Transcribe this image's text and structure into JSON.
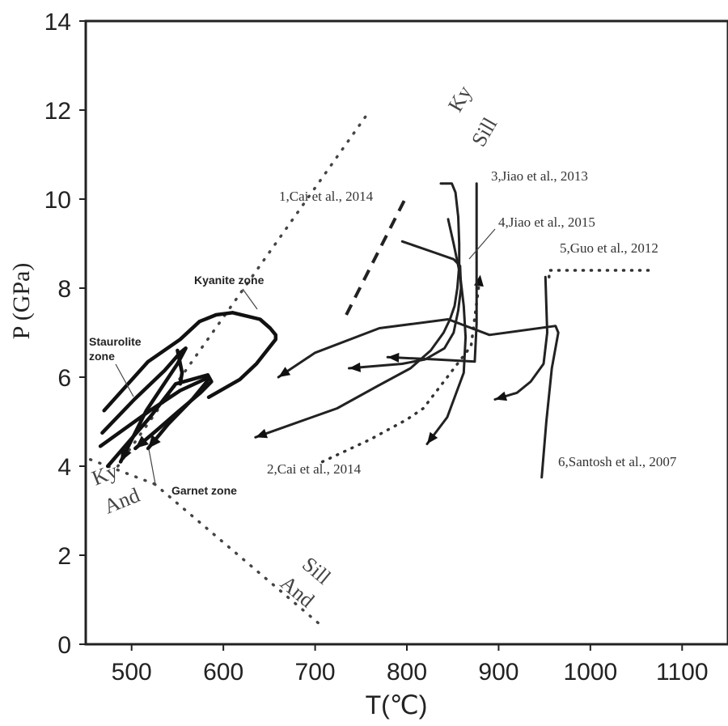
{
  "chart_data": {
    "type": "line",
    "title": "",
    "xlabel": "T(℃)",
    "ylabel": "P (GPa)",
    "xlim": [
      450,
      1150
    ],
    "ylim": [
      0,
      14
    ],
    "xticks": [
      500,
      600,
      700,
      800,
      900,
      1000,
      1100
    ],
    "yticks": [
      0,
      2,
      4,
      6,
      8,
      10,
      12,
      14
    ],
    "grid": false,
    "reaction_lines": [
      {
        "label_top": "Ky",
        "label_bottom": "Sill",
        "x": [
          485,
          760
        ],
        "y": [
          4.0,
          12.0
        ]
      },
      {
        "label_top": "Ky",
        "label_bottom": "And",
        "x": [
          455,
          525
        ],
        "y": [
          4.15,
          3.6
        ]
      },
      {
        "label_top": "Sill",
        "label_bottom": "And",
        "x": [
          525,
          705
        ],
        "y": [
          3.6,
          0.45
        ]
      }
    ],
    "zone_labels": [
      "Kyanite zone",
      "Staurolite zone",
      "Garnet zone"
    ],
    "series": [
      {
        "name": "1,Cai et al., 2014",
        "style": "dashed",
        "x": [
          734,
          798
        ],
        "y": [
          7.4,
          10.0
        ]
      },
      {
        "name": "1,Cai et al., 2014",
        "style": "solid",
        "x": [
          837,
          849,
          853,
          856,
          857,
          857,
          855,
          852,
          847,
          840,
          826,
          804,
          768,
          724,
          676,
          635
        ],
        "y": [
          10.35,
          10.35,
          10.15,
          9.6,
          9.0,
          8.5,
          8.0,
          7.6,
          7.3,
          7.0,
          6.6,
          6.2,
          5.8,
          5.3,
          4.95,
          4.65
        ]
      },
      {
        "name": "2,Cai et al., 2014",
        "style": "dotted",
        "x": [
          708,
          760,
          800,
          818,
          870,
          880
        ],
        "y": [
          4.1,
          4.6,
          5.05,
          5.3,
          6.7,
          8.3
        ]
      },
      {
        "name": "3,Jiao et al., 2013",
        "style": "solid",
        "x": [
          876,
          876,
          876,
          874,
          830,
          779
        ],
        "y": [
          10.35,
          9.0,
          7.2,
          6.35,
          6.4,
          6.45
        ]
      },
      {
        "name": "4,Jiao et al., 2015",
        "style": "solid",
        "x": [
          845,
          851,
          858,
          862,
          864,
          862,
          844,
          822
        ],
        "y": [
          9.55,
          9.0,
          8.3,
          7.6,
          6.9,
          6.1,
          5.1,
          4.5
        ]
      },
      {
        "name": "5,Guo et al., 2012",
        "style": "dotted",
        "x": [
          955,
          955,
          1070
        ],
        "y": [
          8.25,
          8.4,
          8.4
        ]
      },
      {
        "name": "5,Guo et al., 2012",
        "style": "solid",
        "x": [
          951,
          953,
          949,
          935,
          920,
          896
        ],
        "y": [
          8.25,
          7.0,
          6.3,
          5.9,
          5.65,
          5.5
        ]
      },
      {
        "name": "6,Santosh et al., 2007",
        "style": "solid",
        "x": [
          947,
          952,
          958,
          965,
          962,
          890,
          845,
          770,
          700,
          660
        ],
        "y": [
          3.75,
          5.0,
          6.2,
          7.0,
          7.15,
          6.95,
          7.3,
          7.1,
          6.55,
          6.0
        ]
      },
      {
        "name": "",
        "style": "solid",
        "x": [
          795,
          830,
          851,
          858,
          859,
          856,
          851,
          841,
          820,
          795,
          737
        ],
        "y": [
          9.05,
          8.8,
          8.65,
          8.5,
          8.0,
          7.5,
          7.0,
          6.65,
          6.4,
          6.3,
          6.2
        ]
      },
      {
        "name": "Kyanite zone path",
        "style": "bold",
        "x": [
          470,
          518,
          553,
          574,
          592,
          610,
          640,
          651,
          657,
          657,
          636,
          618,
          601,
          584
        ],
        "y": [
          5.25,
          6.35,
          6.85,
          7.25,
          7.4,
          7.45,
          7.3,
          7.1,
          6.95,
          6.85,
          6.3,
          5.95,
          5.75,
          5.55
        ]
      },
      {
        "name": "Staurolite zone path",
        "style": "bold",
        "x": [
          468,
          503,
          536,
          553,
          559,
          550,
          516,
          488
        ],
        "y": [
          4.75,
          5.5,
          6.15,
          6.55,
          6.65,
          6.3,
          5.25,
          4.1
        ]
      },
      {
        "name": "Garnet zone path",
        "style": "bold",
        "x": [
          466,
          520,
          553,
          574,
          584,
          582,
          566,
          540,
          518
        ],
        "y": [
          4.45,
          5.25,
          5.7,
          5.9,
          6.0,
          5.9,
          5.5,
          4.95,
          4.4
        ]
      },
      {
        "name": "",
        "style": "bold",
        "x": [
          474,
          520,
          548,
          583,
          587,
          575,
          552,
          527,
          504
        ],
        "y": [
          4.0,
          5.1,
          5.85,
          6.05,
          5.9,
          5.65,
          5.25,
          4.8,
          4.4
        ]
      },
      {
        "name": "",
        "style": "bold",
        "x": [
          550,
          555,
          553
        ],
        "y": [
          6.6,
          6.1,
          5.85
        ]
      }
    ]
  }
}
